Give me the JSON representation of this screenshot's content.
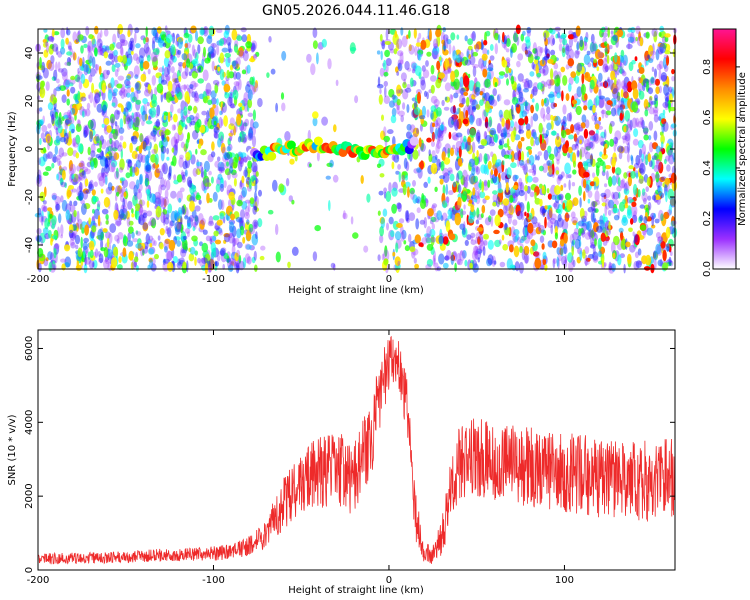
{
  "title": "GN05.2026.044.11.46.G18",
  "chart_data": [
    {
      "type": "heatmap",
      "xlabel": "Height of straight line (km)",
      "ylabel": "Frequency (Hz)",
      "xlim": [
        -200,
        163
      ],
      "ylim": [
        -50,
        50
      ],
      "x_ticks": [
        -200,
        -100,
        0,
        100
      ],
      "x_tick_labels": [
        "-200",
        "-100",
        "0",
        "100"
      ],
      "y_ticks": [
        -40,
        -20,
        0,
        20,
        40
      ],
      "y_tick_labels": [
        "-40",
        "-20",
        "0",
        "20",
        "40"
      ],
      "colorbar": {
        "label": "Normalized spectral amplitude",
        "range": [
          0,
          0.95
        ],
        "ticks": [
          0,
          0.2,
          0.4,
          0.6,
          0.8
        ],
        "tick_labels": [
          "0.0",
          "0.2",
          "0.4",
          "0.6",
          "0.8"
        ],
        "colors": [
          "#ffffff",
          "#9b30ff",
          "#0000ff",
          "#00ffff",
          "#00ff00",
          "#ffff00",
          "#ff8c00",
          "#ff0000",
          "#ff1493"
        ]
      },
      "signal_band": {
        "x_range": [
          -78,
          15
        ],
        "frequency": 0,
        "peak_amplitude": 0.9
      },
      "quiet_region": [
        -75,
        -5
      ],
      "grid": false
    },
    {
      "type": "line",
      "xlabel": "Height of straight line (km)",
      "ylabel": "SNR (10 * v/v)",
      "xlim": [
        -200,
        163
      ],
      "ylim": [
        0,
        6500
      ],
      "x_ticks": [
        -200,
        -100,
        0,
        100
      ],
      "x_tick_labels": [
        "-200",
        "-100",
        "0",
        "100"
      ],
      "y_ticks": [
        0,
        2000,
        4000,
        6000
      ],
      "y_tick_labels": [
        "0",
        "2000",
        "4000",
        "6000"
      ],
      "color": "#ee2a2a",
      "series": [
        {
          "x": [
            -200,
            -180,
            -160,
            -140,
            -120,
            -100,
            -90,
            -80,
            -70,
            -60,
            -50,
            -40,
            -30,
            -20,
            -10,
            -5,
            0,
            5,
            10,
            15,
            20,
            25,
            30,
            35,
            40,
            50,
            60,
            70,
            80,
            90,
            100,
            110,
            120,
            130,
            140,
            150,
            160
          ],
          "y": [
            300,
            320,
            330,
            380,
            420,
            450,
            500,
            650,
            1000,
            1800,
            2400,
            2600,
            2800,
            2400,
            3600,
            4800,
            5600,
            5800,
            4500,
            1500,
            500,
            400,
            900,
            2000,
            2900,
            3100,
            3000,
            2900,
            2800,
            2700,
            2600,
            2600,
            2500,
            2500,
            2400,
            2400,
            2500
          ],
          "noise_amplitude": [
            150,
            150,
            150,
            170,
            180,
            200,
            220,
            260,
            400,
            700,
            900,
            1000,
            1000,
            1000,
            1100,
            900,
            800,
            700,
            900,
            700,
            300,
            250,
            500,
            900,
            1000,
            1100,
            1100,
            1100,
            1100,
            1100,
            1100,
            1100,
            1100,
            1100,
            1100,
            1100,
            1100
          ]
        }
      ],
      "grid": false
    }
  ]
}
